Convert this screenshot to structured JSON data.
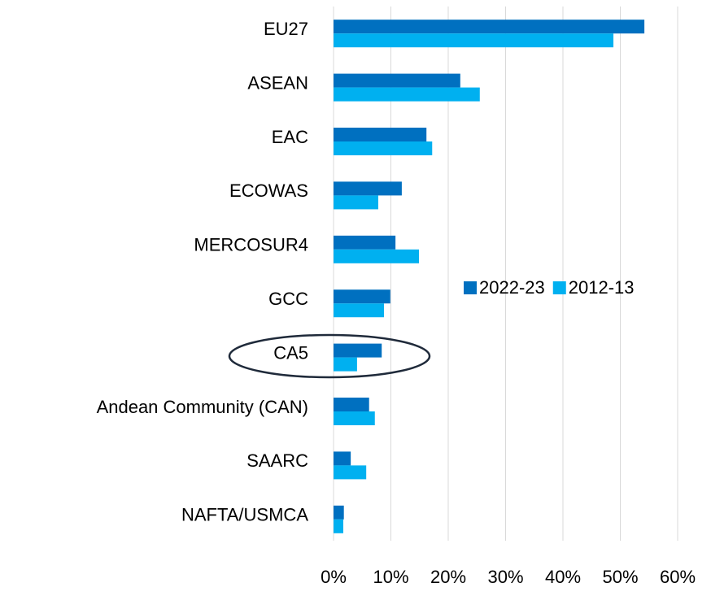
{
  "chart_data": {
    "type": "bar",
    "orientation": "horizontal",
    "categories": [
      "EU27",
      "ASEAN",
      "EAC",
      "ECOWAS",
      "MERCOSUR4",
      "GCC",
      "CA5",
      "Andean Community (CAN)",
      "SAARC",
      "NAFTA/USMCA"
    ],
    "series": [
      {
        "name": "2022-23",
        "color": "#0070c0",
        "values": [
          54.2,
          22.1,
          16.2,
          11.9,
          10.8,
          9.9,
          8.4,
          6.2,
          3.0,
          1.8
        ]
      },
      {
        "name": "2012-13",
        "color": "#00b0f0",
        "values": [
          48.8,
          25.5,
          17.2,
          7.8,
          14.9,
          8.8,
          4.1,
          7.2,
          5.7,
          1.7
        ]
      }
    ],
    "xlim": [
      0,
      60
    ],
    "xticks": [
      {
        "value": 0,
        "label": "0%"
      },
      {
        "value": 10,
        "label": "10%"
      },
      {
        "value": 20,
        "label": "20%"
      },
      {
        "value": 30,
        "label": "30%"
      },
      {
        "value": 40,
        "label": "40%"
      },
      {
        "value": 50,
        "label": "50%"
      },
      {
        "value": 60,
        "label": "60%"
      }
    ],
    "grid": true,
    "legend": "right"
  }
}
